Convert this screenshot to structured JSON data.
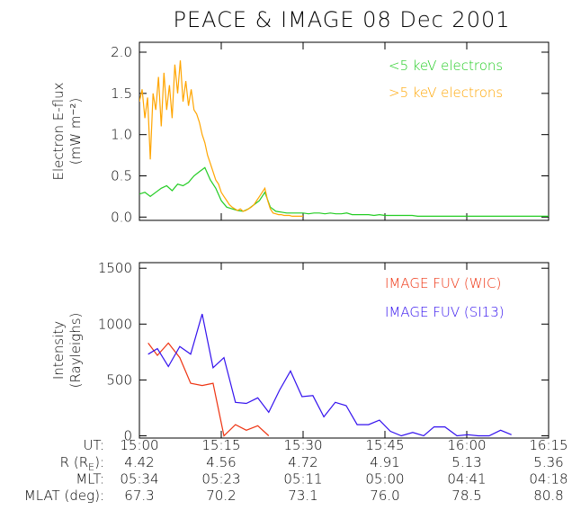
{
  "title": "PEACE & IMAGE  08 Dec 2001",
  "chart_data": [
    {
      "type": "line",
      "ylabel": [
        "Electron E-flux",
        "(mW m⁻²)"
      ],
      "xlim": [
        0,
        75
      ],
      "xticks": [
        0,
        15,
        30,
        45,
        60,
        75
      ],
      "ylim": [
        -0.04,
        2.12
      ],
      "yticks": [
        {
          "value": 0,
          "label": "0.0"
        },
        0.5,
        {
          "value": 1,
          "label": "1.0"
        },
        1.5,
        {
          "value": 2,
          "label": "2.0"
        }
      ],
      "series": [
        {
          "name": "<5 keV electrons",
          "color": "#22cc22",
          "x": [
            0,
            1,
            2,
            3,
            4,
            5,
            6,
            7,
            8,
            9,
            10,
            11,
            12,
            13,
            14,
            15,
            16,
            17,
            18,
            19,
            20,
            21,
            22,
            23,
            24,
            25,
            26,
            27,
            28,
            29,
            30,
            31,
            32,
            33,
            34,
            35,
            36,
            37,
            38,
            39,
            40,
            41,
            42,
            43,
            44,
            45,
            46,
            47,
            48,
            49,
            50,
            51,
            52,
            53,
            54,
            55,
            56,
            57,
            58,
            59,
            60,
            61,
            62,
            63,
            64,
            65,
            66,
            67,
            68,
            69,
            70,
            71,
            72,
            73,
            74,
            75
          ],
          "values": [
            0.28,
            0.3,
            0.25,
            0.3,
            0.35,
            0.38,
            0.32,
            0.4,
            0.38,
            0.42,
            0.5,
            0.55,
            0.6,
            0.45,
            0.35,
            0.2,
            0.12,
            0.1,
            0.08,
            0.07,
            0.1,
            0.15,
            0.2,
            0.3,
            0.12,
            0.07,
            0.06,
            0.05,
            0.05,
            0.05,
            0.05,
            0.04,
            0.05,
            0.05,
            0.04,
            0.05,
            0.04,
            0.04,
            0.05,
            0.03,
            0.03,
            0.03,
            0.03,
            0.02,
            0.03,
            0.02,
            0.02,
            0.02,
            0.02,
            0.02,
            0.02,
            0.01,
            0.01,
            0.01,
            0.01,
            0.01,
            0.01,
            0.01,
            0.01,
            0.01,
            0.01,
            0.01,
            0.01,
            0.01,
            0.01,
            0.01,
            0.01,
            0.01,
            0.01,
            0.01,
            0.01,
            0.01,
            0.01,
            0.01,
            0.01,
            0.01
          ]
        },
        {
          "name": ">5 keV electrons",
          "color": "#ffa500",
          "x": [
            0,
            0.5,
            1,
            1.5,
            2,
            2.5,
            3,
            3.5,
            4,
            4.5,
            5,
            5.5,
            6,
            6.5,
            7,
            7.5,
            8,
            8.5,
            9,
            9.5,
            10,
            10.5,
            11,
            11.5,
            12,
            12.5,
            13,
            13.5,
            14,
            14.5,
            15,
            15.5,
            16,
            16.5,
            17,
            17.5,
            18,
            18.5,
            19,
            19.5,
            20,
            20.5,
            21,
            21.5,
            22,
            22.5,
            23,
            23.5,
            24,
            24.5,
            25,
            25.5,
            26,
            26.5,
            27,
            27.5,
            28,
            28.5,
            29,
            29.5,
            30
          ],
          "values": [
            1.4,
            1.55,
            1.2,
            1.45,
            0.7,
            1.5,
            1.3,
            1.7,
            1.1,
            1.75,
            1.3,
            1.6,
            1.2,
            1.85,
            1.5,
            1.9,
            1.4,
            1.65,
            1.35,
            1.55,
            1.3,
            1.25,
            1.15,
            1.0,
            0.9,
            0.75,
            0.65,
            0.55,
            0.45,
            0.4,
            0.3,
            0.25,
            0.2,
            0.15,
            0.12,
            0.1,
            0.08,
            0.1,
            0.07,
            0.08,
            0.1,
            0.12,
            0.15,
            0.2,
            0.25,
            0.3,
            0.35,
            0.2,
            0.1,
            0.05,
            0.04,
            0.03,
            0.03,
            0.02,
            0.02,
            0.02,
            0.01,
            0.01,
            0.01,
            0.01,
            0.01
          ]
        }
      ]
    },
    {
      "type": "line",
      "ylabel": [
        "Intensity",
        "(Rayleighs)"
      ],
      "xlim": [
        0,
        75
      ],
      "xticks": [
        {
          "value": 0,
          "label": "15:00"
        },
        {
          "value": 15,
          "label": "15:15"
        },
        {
          "value": 30,
          "label": "15:30"
        },
        {
          "value": 45,
          "label": "15:45"
        },
        {
          "value": 60,
          "label": "16:00"
        },
        {
          "value": 75,
          "label": "16:15"
        }
      ],
      "ylim": [
        -20,
        1550
      ],
      "yticks": [
        0,
        500,
        1000,
        1500
      ],
      "series": [
        {
          "name": "IMAGE FUV (WIC)",
          "color": "#ee3311",
          "x": [
            1.6,
            3.3,
            5.3,
            7.4,
            9.4,
            11.5,
            13.5,
            15.5,
            17.6,
            19.6,
            21.7,
            23.7
          ],
          "values": [
            830,
            720,
            830,
            700,
            470,
            450,
            470,
            0,
            100,
            50,
            90,
            0
          ]
        },
        {
          "name": "IMAGE FUV (SI13)",
          "color": "#3311ee",
          "x": [
            1.6,
            3.3,
            5.3,
            7.4,
            9.4,
            11.5,
            13.5,
            15.5,
            17.6,
            19.6,
            21.7,
            23.7,
            25.7,
            27.7,
            29.8,
            31.8,
            33.8,
            35.9,
            37.9,
            39.9,
            42,
            44,
            46,
            48,
            50.1,
            52.1,
            54,
            56,
            58.2,
            60.2,
            62.1,
            64.1,
            66.2,
            68.2
          ],
          "values": [
            730,
            780,
            620,
            800,
            730,
            1090,
            610,
            700,
            300,
            290,
            340,
            210,
            410,
            580,
            350,
            360,
            170,
            300,
            270,
            100,
            100,
            140,
            40,
            0,
            30,
            0,
            80,
            80,
            0,
            10,
            0,
            0,
            50,
            10
          ]
        }
      ]
    }
  ],
  "orbit_table": {
    "ut_label": "UT:",
    "rows": [
      {
        "label": [
          "R (R",
          "E",
          "):"
        ],
        "values": [
          "4.42",
          "4.56",
          "4.72",
          "4.91",
          "5.13",
          "5.36"
        ]
      },
      {
        "label": [
          "MLT:"
        ],
        "values": [
          "05:34",
          "05:23",
          "05:11",
          "05:00",
          "04:41",
          "04:18"
        ]
      },
      {
        "label": [
          "MLAT (deg):"
        ],
        "values": [
          "67.3",
          "70.2",
          "73.1",
          "76.0",
          "78.5",
          "80.8"
        ]
      }
    ]
  }
}
